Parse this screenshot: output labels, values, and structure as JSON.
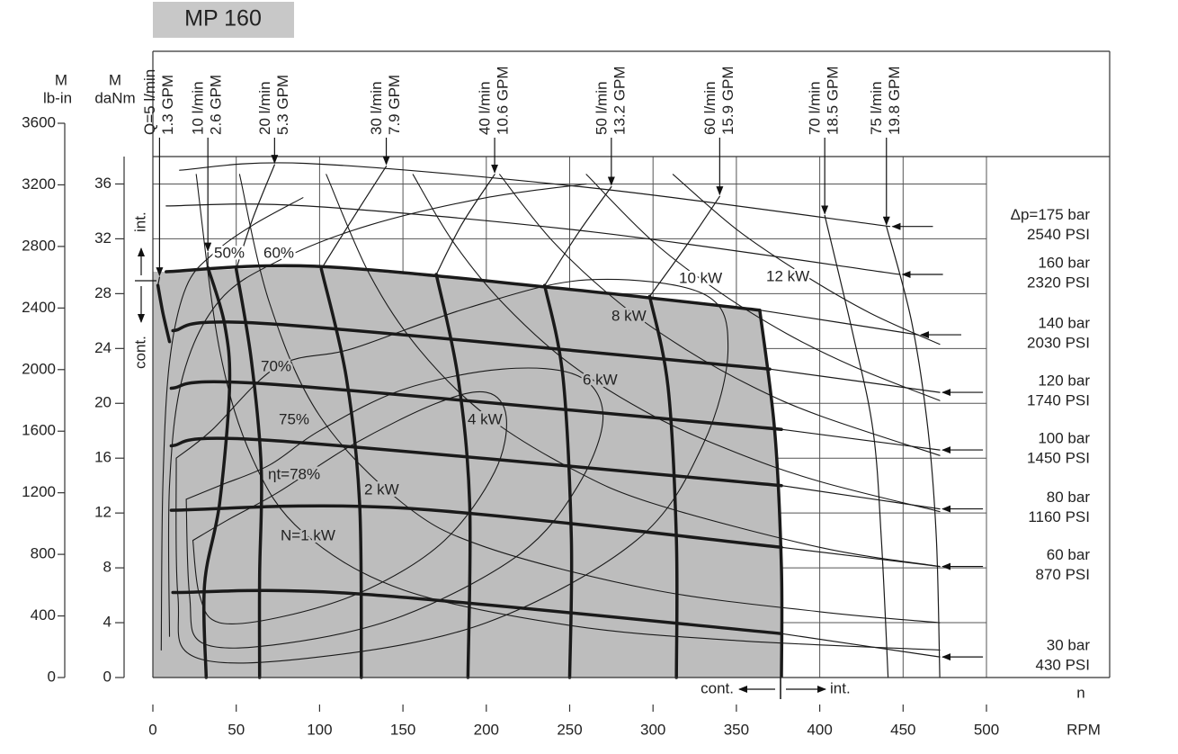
{
  "chart_data": {
    "type": "line",
    "title": "MP 160",
    "xlabel": "n",
    "xunit": "RPM",
    "ylabel": [
      "M",
      "daNm"
    ],
    "y2label": [
      "M",
      "lb-in"
    ],
    "xlim": [
      0,
      500
    ],
    "xticks": [
      0,
      50,
      100,
      150,
      200,
      250,
      300,
      350,
      400,
      450,
      500
    ],
    "ylim": [
      0,
      38
    ],
    "yticks": [
      0,
      4,
      8,
      12,
      16,
      20,
      24,
      28,
      32,
      36
    ],
    "y2lim": [
      0,
      3600
    ],
    "y2ticks": [
      0,
      400,
      800,
      1200,
      1600,
      2000,
      2400,
      2800,
      3200,
      3600
    ],
    "grid": true,
    "grid_color": "#555555",
    "line_color": "#1a1a1a",
    "region_color": "#bdbdbd",
    "operating_region": {
      "x": [
        0,
        8,
        97,
        243,
        364,
        373,
        377,
        377,
        0
      ],
      "values": [
        29.6,
        29.6,
        30,
        28.4,
        26.8,
        18,
        8,
        0,
        0
      ]
    },
    "pressure_curves": [
      {
        "name": "Δp=175 bar",
        "sublabel": "2540 PSI",
        "ext_x": [
          16,
          92,
          264,
          442
        ],
        "ext_values": [
          37,
          37.5,
          35.7,
          32.9
        ]
      },
      {
        "name": "160 bar",
        "sublabel": "2320 PSI",
        "ext_x": [
          8,
          92,
          264,
          448
        ],
        "ext_values": [
          34.4,
          34.4,
          32.5,
          29.4
        ]
      },
      {
        "name": "140 bar",
        "sublabel": "2030 PSI",
        "x": [
          8,
          97,
          243,
          364
        ],
        "values": [
          29.6,
          30,
          28.4,
          26.8
        ],
        "ext_x": [
          364,
          459
        ],
        "ext_values": [
          26.8,
          25.0
        ]
      },
      {
        "name": "120 bar",
        "sublabel": "1740 PSI",
        "x": [
          12,
          70,
          370
        ],
        "values": [
          25.3,
          25.8,
          22.5
        ],
        "ext_x": [
          370,
          472
        ],
        "ext_values": [
          22.5,
          20.8
        ]
      },
      {
        "name": "100 bar",
        "sublabel": "1450 PSI",
        "x": [
          11,
          70,
          377
        ],
        "values": [
          21.1,
          21.4,
          18.1
        ],
        "ext_x": [
          377,
          472
        ],
        "ext_values": [
          18.1,
          16.6
        ]
      },
      {
        "name": "80 bar",
        "sublabel": "1160 PSI",
        "x": [
          11,
          70,
          377
        ],
        "values": [
          16.9,
          17.3,
          14.0
        ],
        "ext_x": [
          377,
          472
        ],
        "ext_values": [
          14.0,
          12.3
        ]
      },
      {
        "name": "60 bar",
        "sublabel": "870 PSI",
        "x": [
          11,
          151,
          377
        ],
        "values": [
          12.2,
          12.35,
          9.5
        ],
        "ext_x": [
          377,
          472
        ],
        "ext_values": [
          9.5,
          8.1
        ]
      },
      {
        "name": "30 bar",
        "sublabel": "430 PSI",
        "x": [
          12,
          124,
          377
        ],
        "values": [
          6.2,
          6.1,
          3.2
        ],
        "ext_x": [
          377,
          472
        ],
        "ext_values": [
          3.2,
          1.5
        ]
      }
    ],
    "flow_curves": [
      {
        "name": "Q=5 l/min",
        "sublabel": "1.3 GPM",
        "ext_x": [
          4,
          3
        ],
        "ext_values": [
          29.2,
          28.6
        ],
        "x": [
          3,
          6,
          10
        ],
        "values": [
          28.6,
          26.6,
          24.5
        ]
      },
      {
        "name": "10 l/min",
        "sublabel": "2.6 GPM",
        "ext_x": [
          33,
          33
        ],
        "ext_values": [
          31,
          29.9
        ],
        "x": [
          33,
          43,
          46,
          40,
          31,
          32
        ],
        "values": [
          29.9,
          25.8,
          21.2,
          12.7,
          6.8,
          0
        ]
      },
      {
        "name": "20 l/min",
        "sublabel": "5.3 GPM",
        "ext_x": [
          73,
          60,
          50
        ],
        "ext_values": [
          37.4,
          33.5,
          29.8
        ],
        "x": [
          50,
          59,
          65,
          64,
          64
        ],
        "values": [
          29.8,
          23.2,
          15.3,
          7.4,
          0
        ]
      },
      {
        "name": "30 l/min",
        "sublabel": "7.9 GPM",
        "ext_x": [
          140,
          120,
          101
        ],
        "ext_values": [
          37.3,
          33.5,
          29.8
        ],
        "x": [
          101,
          116,
          124,
          125
        ],
        "values": [
          29.8,
          21.9,
          12.7,
          0
        ]
      },
      {
        "name": "40 l/min",
        "sublabel": "10.6 GPM",
        "ext_x": [
          205,
          185,
          170
        ],
        "ext_values": [
          36.7,
          33,
          29.4
        ],
        "x": [
          170,
          183,
          190,
          189
        ],
        "values": [
          29.4,
          21.9,
          12.7,
          0
        ]
      },
      {
        "name": "50 l/min",
        "sublabel": "13.2 GPM",
        "ext_x": [
          275,
          255,
          235
        ],
        "ext_values": [
          35.8,
          32.4,
          28.6
        ],
        "x": [
          235,
          246,
          251,
          250
        ],
        "values": [
          28.6,
          21.9,
          10.1,
          0
        ]
      },
      {
        "name": "60 l/min",
        "sublabel": "15.9 GPM",
        "ext_x": [
          340,
          320,
          298
        ],
        "ext_values": [
          35.1,
          31.5,
          27.8
        ],
        "x": [
          298,
          309,
          314,
          314
        ],
        "values": [
          27.8,
          21.2,
          10.1,
          0
        ]
      },
      {
        "name": "70 l/min",
        "sublabel": "18.5 GPM",
        "ext_x": [
          403,
          420,
          432,
          437,
          441
        ],
        "ext_values": [
          33.7,
          25,
          18,
          10,
          0
        ]
      },
      {
        "name": "75 l/min",
        "sublabel": "19.8 GPM",
        "ext_x": [
          440,
          455,
          465,
          470,
          472
        ],
        "ext_values": [
          32.9,
          26,
          18,
          10,
          0
        ]
      }
    ],
    "efficiency_curves": [
      {
        "name": "50%",
        "x": [
          5,
          6,
          10,
          20,
          37,
          60,
          90
        ],
        "values": [
          2,
          14,
          23,
          28.5,
          31,
          33,
          35
        ]
      },
      {
        "name": "60%",
        "x": [
          10,
          10,
          18,
          40,
          77,
          130,
          200,
          260
        ],
        "values": [
          3,
          14,
          22,
          27.5,
          30.5,
          33,
          35,
          36
        ]
      },
      {
        "name": "70%",
        "x": [
          14,
          15,
          25,
          100,
          200,
          290,
          330,
          345,
          330,
          260,
          190,
          120,
          75,
          35,
          14
        ],
        "values": [
          16,
          6,
          1.5,
          1.5,
          4,
          10,
          17,
          24,
          28,
          29,
          27,
          24,
          22.7,
          18,
          16
        ]
      },
      {
        "name": "75%",
        "x": [
          20,
          22,
          30,
          80,
          150,
          220,
          255,
          270,
          255,
          210,
          150,
          100,
          70,
          40,
          20
        ],
        "values": [
          13,
          6,
          2.5,
          2.5,
          4.5,
          9,
          14,
          19,
          22,
          22.5,
          21,
          18,
          15.5,
          14,
          13
        ]
      },
      {
        "name": "ηt=78%",
        "x": [
          24,
          28,
          40,
          80,
          130,
          175,
          205,
          212,
          200,
          170,
          120,
          75,
          45,
          24
        ],
        "values": [
          10,
          6,
          4,
          4.5,
          6.5,
          10,
          15,
          19,
          20.8,
          20,
          17,
          13.5,
          11.5,
          10
        ]
      }
    ],
    "power_curves": [
      {
        "name": "N=1 kW",
        "x": [
          26,
          40,
          60,
          90,
          150,
          250,
          350,
          472
        ],
        "values": [
          36.7,
          23.9,
          15.9,
          10.6,
          6.4,
          3.8,
          2.7,
          2.0
        ]
      },
      {
        "name": "2 kW",
        "x": [
          52,
          70,
          100,
          150,
          200,
          300,
          400,
          472
        ],
        "values": [
          36.7,
          27.3,
          19.1,
          12.7,
          9.5,
          6.4,
          4.8,
          4.0
        ]
      },
      {
        "name": "4 kW",
        "x": [
          104,
          130,
          160,
          200,
          250,
          300,
          400,
          472
        ],
        "values": [
          36.7,
          29.4,
          23.9,
          19.1,
          15.3,
          12.7,
          9.5,
          8.1
        ]
      },
      {
        "name": "6 kW",
        "x": [
          156,
          180,
          210,
          250,
          300,
          350,
          400,
          472
        ],
        "values": [
          36.7,
          31.8,
          27.3,
          22.9,
          19.1,
          16.4,
          14.3,
          12.1
        ]
      },
      {
        "name": "8 kW",
        "x": [
          208,
          240,
          280,
          320,
          360,
          400,
          472
        ],
        "values": [
          36.7,
          31.8,
          27.3,
          23.9,
          21.2,
          19.1,
          16.2
        ]
      },
      {
        "name": "10 kW",
        "x": [
          260,
          300,
          340,
          380,
          420,
          472
        ],
        "values": [
          36.7,
          31.8,
          28.1,
          25.1,
          22.7,
          20.2
        ]
      },
      {
        "name": "12 kW",
        "x": [
          312,
          350,
          390,
          430,
          472
        ],
        "values": [
          36.7,
          32.7,
          29.4,
          26.6,
          24.3
        ]
      }
    ],
    "annotations": [
      "int.",
      "cont.",
      "cont.",
      "int."
    ]
  }
}
